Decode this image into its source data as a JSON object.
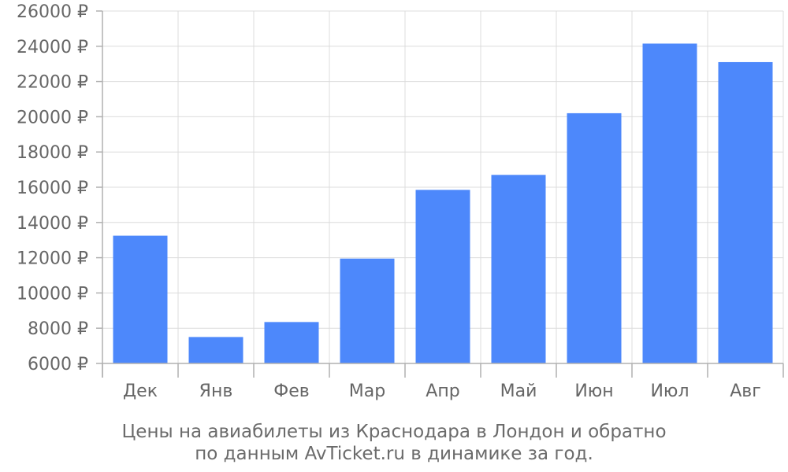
{
  "chart_data": {
    "type": "bar",
    "categories": [
      "Дек",
      "Янв",
      "Фев",
      "Мар",
      "Апр",
      "Май",
      "Июн",
      "Июл",
      "Авг"
    ],
    "values": [
      13250,
      7500,
      8350,
      11950,
      15850,
      16700,
      20200,
      24150,
      23100
    ],
    "ylim": [
      6000,
      26000
    ],
    "yticks": [
      6000,
      8000,
      10000,
      12000,
      14000,
      16000,
      18000,
      20000,
      22000,
      24000,
      26000
    ],
    "ytick_suffix": " ₽",
    "grid": true,
    "bar_color": "#4d88fb",
    "caption_lines": [
      "Цены на авиабилеты из Краснодара в Лондон и обратно",
      "по данным AvTicket.ru в динамике за год."
    ]
  }
}
